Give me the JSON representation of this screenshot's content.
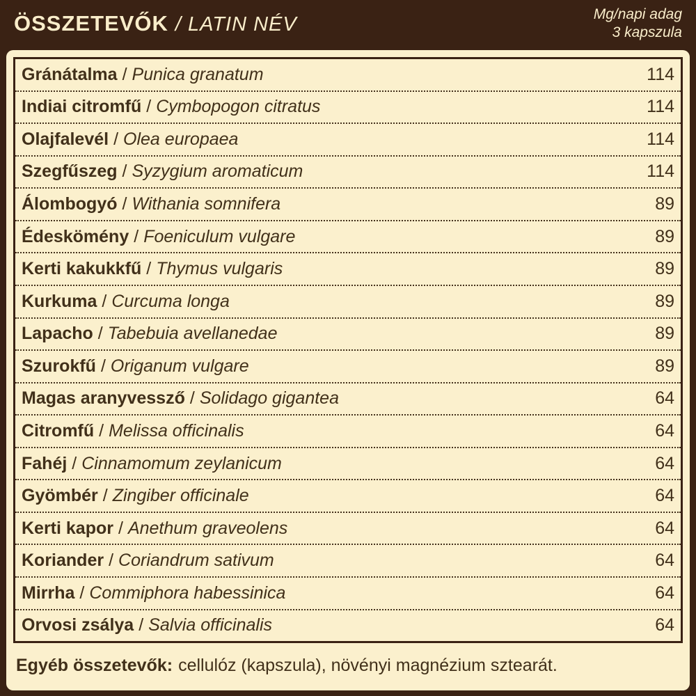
{
  "header": {
    "title": "ÖSSZETEVŐK",
    "subtitle": "/ LATIN NÉV",
    "dose_line1": "Mg/napi adag",
    "dose_line2": "3 kapszula"
  },
  "table": {
    "separator": "/",
    "rows": [
      {
        "name": "Gránátalma",
        "latin": "Punica granatum",
        "mg": "114"
      },
      {
        "name": "Indiai citromfű",
        "latin": "Cymbopogon citratus",
        "mg": "114"
      },
      {
        "name": "Olajfalevél",
        "latin": "Olea europaea",
        "mg": "114"
      },
      {
        "name": "Szegfűszeg",
        "latin": "Syzygium aromaticum",
        "mg": "114"
      },
      {
        "name": "Álombogyó",
        "latin": "Withania somnifera",
        "mg": "89"
      },
      {
        "name": "Édeskömény",
        "latin": "Foeniculum vulgare",
        "mg": "89"
      },
      {
        "name": "Kerti kakukkfű",
        "latin": "Thymus vulgaris",
        "mg": "89"
      },
      {
        "name": "Kurkuma",
        "latin": "Curcuma longa",
        "mg": "89"
      },
      {
        "name": "Lapacho",
        "latin": "Tabebuia avellanedae",
        "mg": "89"
      },
      {
        "name": "Szurokfű",
        "latin": "Origanum vulgare",
        "mg": "89"
      },
      {
        "name": "Magas aranyvessző",
        "latin": "Solidago gigantea",
        "mg": "64"
      },
      {
        "name": "Citromfű",
        "latin": "Melissa officinalis",
        "mg": "64"
      },
      {
        "name": "Fahéj",
        "latin": "Cinnamomum zeylanicum",
        "mg": "64"
      },
      {
        "name": "Gyömbér",
        "latin": "Zingiber officinale",
        "mg": "64"
      },
      {
        "name": "Kerti kapor",
        "latin": "Anethum graveolens",
        "mg": "64"
      },
      {
        "name": "Koriander",
        "latin": "Coriandrum sativum",
        "mg": "64"
      },
      {
        "name": "Mirrha",
        "latin": "Commiphora habessinica",
        "mg": "64"
      },
      {
        "name": "Orvosi zsálya",
        "latin": "Salvia officinalis",
        "mg": "64"
      }
    ]
  },
  "footer": {
    "label": "Egyéb összetevők:",
    "text": "cellulóz (kapszula), növényi magnézium sztearát."
  },
  "colors": {
    "frame": "#3a2214",
    "panel": "#fbf0cd",
    "text": "#41301a",
    "header_text": "#f9edca"
  }
}
